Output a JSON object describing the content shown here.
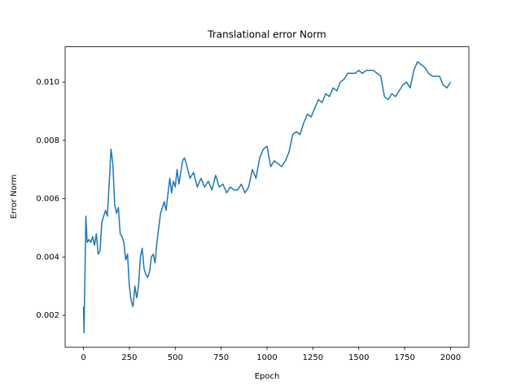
{
  "chart_data": {
    "type": "line",
    "title": "Translational error Norm",
    "x_label": "Epoch",
    "y_label": "Error Norm",
    "color": "#1f77b4",
    "x": [
      0,
      3,
      13,
      20,
      30,
      40,
      50,
      60,
      70,
      80,
      90,
      100,
      110,
      120,
      130,
      140,
      150,
      160,
      170,
      180,
      190,
      200,
      210,
      220,
      230,
      240,
      250,
      260,
      270,
      280,
      290,
      300,
      310,
      320,
      330,
      340,
      350,
      360,
      370,
      380,
      390,
      400,
      420,
      440,
      450,
      470,
      480,
      490,
      500,
      510,
      520,
      540,
      550,
      560,
      580,
      600,
      620,
      640,
      660,
      680,
      700,
      720,
      740,
      760,
      780,
      800,
      820,
      840,
      860,
      880,
      900,
      920,
      940,
      960,
      980,
      1000,
      1020,
      1040,
      1060,
      1080,
      1100,
      1120,
      1140,
      1160,
      1180,
      1200,
      1220,
      1240,
      1260,
      1280,
      1300,
      1320,
      1340,
      1360,
      1380,
      1400,
      1420,
      1440,
      1460,
      1480,
      1500,
      1520,
      1540,
      1560,
      1580,
      1600,
      1620,
      1640,
      1660,
      1680,
      1700,
      1720,
      1740,
      1760,
      1780,
      1800,
      1820,
      1840,
      1860,
      1880,
      1900,
      1920,
      1940,
      1960,
      1980,
      2000
    ],
    "values": [
      0.0023,
      0.0014,
      0.0054,
      0.0045,
      0.0046,
      0.0045,
      0.0047,
      0.0044,
      0.0048,
      0.0041,
      0.0042,
      0.0052,
      0.0054,
      0.0056,
      0.0054,
      0.0065,
      0.0077,
      0.0072,
      0.0058,
      0.0055,
      0.0057,
      0.0048,
      0.0047,
      0.0045,
      0.0039,
      0.0041,
      0.003,
      0.0025,
      0.0023,
      0.003,
      0.0026,
      0.003,
      0.004,
      0.0043,
      0.0036,
      0.0034,
      0.0033,
      0.0035,
      0.004,
      0.0041,
      0.0038,
      0.0045,
      0.0055,
      0.0059,
      0.0056,
      0.0067,
      0.0062,
      0.0066,
      0.0064,
      0.007,
      0.0065,
      0.0073,
      0.0074,
      0.0072,
      0.0067,
      0.0069,
      0.0064,
      0.0067,
      0.0064,
      0.0066,
      0.0063,
      0.0068,
      0.0064,
      0.0065,
      0.0062,
      0.0064,
      0.0063,
      0.0063,
      0.0065,
      0.0062,
      0.0064,
      0.007,
      0.0067,
      0.0074,
      0.0077,
      0.0078,
      0.0071,
      0.0073,
      0.0072,
      0.0071,
      0.0073,
      0.0076,
      0.0082,
      0.0083,
      0.0082,
      0.0086,
      0.0089,
      0.0088,
      0.0091,
      0.0094,
      0.0093,
      0.0096,
      0.0095,
      0.0098,
      0.0097,
      0.01,
      0.0101,
      0.0103,
      0.0103,
      0.0103,
      0.0104,
      0.0103,
      0.0104,
      0.0104,
      0.0104,
      0.0103,
      0.0102,
      0.0095,
      0.0094,
      0.0096,
      0.0095,
      0.0097,
      0.0099,
      0.01,
      0.0098,
      0.0104,
      0.0107,
      0.0106,
      0.0105,
      0.0103,
      0.0102,
      0.0102,
      0.0102,
      0.0099,
      0.0098,
      0.01
    ],
    "xlim": [
      -100,
      2100
    ],
    "xticks": [
      0,
      250,
      500,
      750,
      1000,
      1250,
      1500,
      1750,
      2000
    ],
    "ylim": [
      0.00091,
      0.01121
    ],
    "yticks": [
      0.002,
      0.004,
      0.006,
      0.008,
      {
        "value": 0.01,
        "label": "0.010"
      }
    ]
  }
}
